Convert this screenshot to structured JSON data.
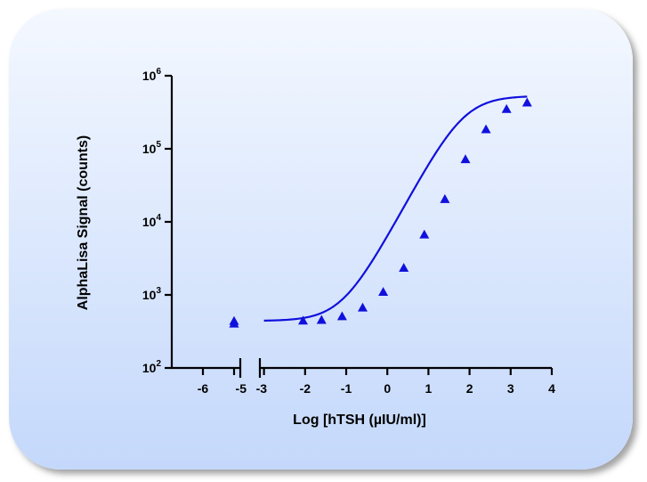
{
  "chart_data": {
    "type": "scatter",
    "title": "",
    "xlabel": "Log [hTSH (µIU/ml)]",
    "ylabel": "AlphaLisa Signal (counts)",
    "y_scale": "log",
    "ylim": [
      100,
      1000000
    ],
    "x_axis_break": true,
    "x_segments": [
      {
        "range": [
          -7,
          -4.8
        ],
        "ticks": [
          -6,
          -5
        ],
        "tick_labels": [
          "-6",
          "-5"
        ]
      },
      {
        "range": [
          -3.1,
          4
        ],
        "ticks": [
          -3,
          -2,
          -1,
          0,
          1,
          2,
          3,
          4
        ],
        "tick_labels": [
          "-3",
          "-2",
          "-1",
          "0",
          "1",
          "2",
          "3",
          "4"
        ]
      }
    ],
    "y_ticks": [
      {
        "value": 100,
        "base": "10",
        "exp": "2"
      },
      {
        "value": 1000,
        "base": "10",
        "exp": "3"
      },
      {
        "value": 10000,
        "base": "10",
        "exp": "4"
      },
      {
        "value": 100000,
        "base": "10",
        "exp": "5"
      },
      {
        "value": 1000000,
        "base": "10",
        "exp": "6"
      }
    ],
    "color": "#1010dd",
    "marker": "triangle",
    "series": [
      {
        "points": [
          {
            "x": -5,
            "y": 440
          },
          {
            "x": -5,
            "y": 405
          },
          {
            "x": -2.05,
            "y": 445
          },
          {
            "x": -1.6,
            "y": 455
          },
          {
            "x": -1.1,
            "y": 510
          },
          {
            "x": -0.6,
            "y": 670
          },
          {
            "x": -0.1,
            "y": 1100
          },
          {
            "x": 0.4,
            "y": 2350
          },
          {
            "x": 0.9,
            "y": 6700
          },
          {
            "x": 1.4,
            "y": 20500
          },
          {
            "x": 1.9,
            "y": 72000
          },
          {
            "x": 2.4,
            "y": 185000
          },
          {
            "x": 2.9,
            "y": 350000
          },
          {
            "x": 3.4,
            "y": 430000
          }
        ],
        "fit_curve": {
          "type": "4PL",
          "bottom": 440,
          "top": 530000,
          "log_ec50": 1.85,
          "hill": 1.05,
          "x_range": [
            -3,
            3.4
          ]
        }
      }
    ]
  }
}
